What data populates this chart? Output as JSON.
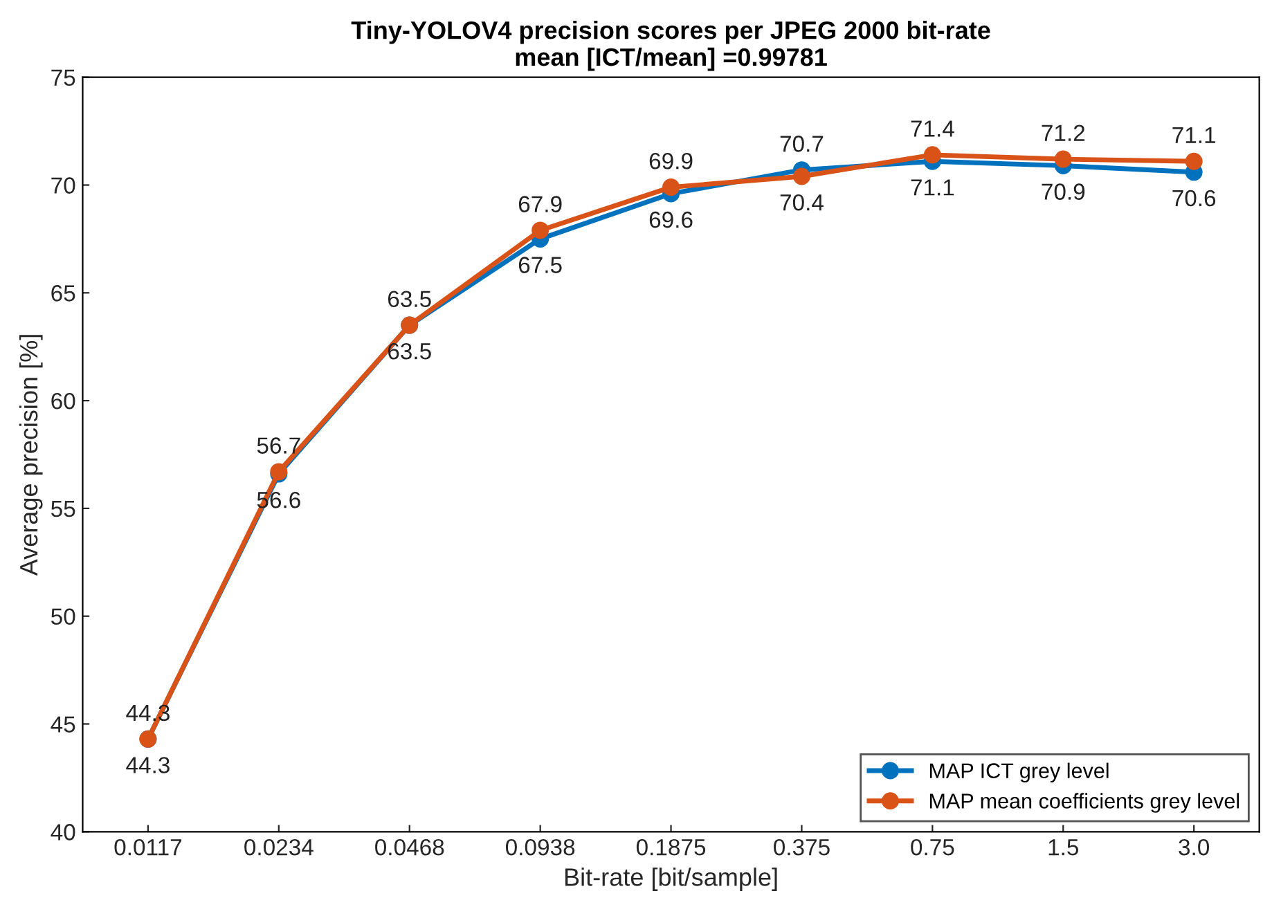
{
  "chart_data": {
    "type": "line",
    "title": "Tiny-YOLOV4 precision scores per JPEG 2000 bit-rate",
    "subtitle": "mean [ICT/mean] =0.99781",
    "xlabel": "Bit-rate [bit/sample]",
    "ylabel": "Average precision [%]",
    "categories": [
      "0.0117",
      "0.0234",
      "0.0468",
      "0.0938",
      "0.1875",
      "0.375",
      "0.75",
      "1.5",
      "3.0"
    ],
    "series": [
      {
        "name": "MAP ICT grey level",
        "color": "#0072bd",
        "values": [
          44.3,
          56.6,
          63.5,
          67.5,
          69.6,
          70.7,
          71.1,
          70.9,
          70.6
        ]
      },
      {
        "name": "MAP mean coefficients grey level",
        "color": "#d95319",
        "values": [
          44.3,
          56.7,
          63.5,
          67.9,
          69.9,
          70.4,
          71.4,
          71.2,
          71.1
        ]
      }
    ],
    "ylim": [
      40,
      75
    ],
    "yticks": [
      40,
      45,
      50,
      55,
      60,
      65,
      70,
      75
    ],
    "data_labels": true,
    "legend": "bottom right",
    "grid": false,
    "marker": "circle",
    "line_style": "solid"
  }
}
